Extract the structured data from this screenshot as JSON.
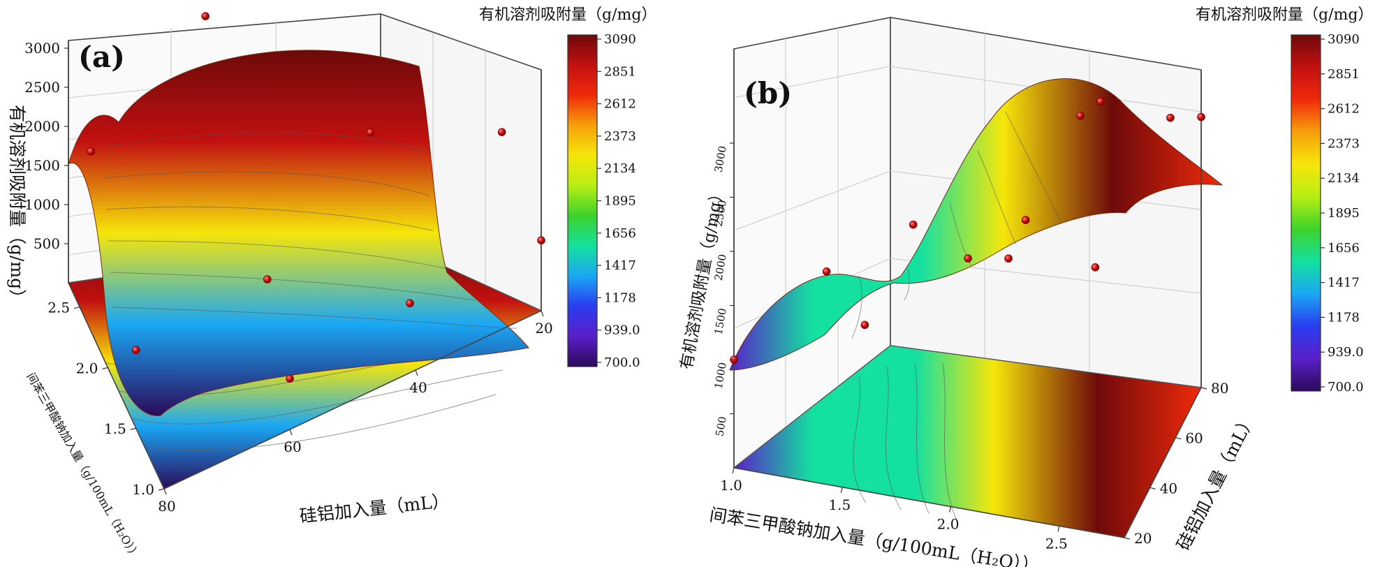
{
  "colors": {
    "colormap": [
      "#2b0a5a",
      "#5a1fc8",
      "#2a3cf0",
      "#1aa7f4",
      "#14e0a0",
      "#3cd22c",
      "#b6ee14",
      "#f6e60a",
      "#f6a00a",
      "#f02a0a",
      "#c21010",
      "#6e0a0a"
    ],
    "point": "#d01010",
    "contour": "#555555"
  },
  "colorbar": {
    "title": "有机溶剂吸附量（g/mg）",
    "ticks": [
      "3090",
      "2851",
      "2612",
      "2373",
      "2134",
      "1895",
      "1656",
      "1417",
      "1178",
      "939.0",
      "700.0"
    ]
  },
  "chart_data": [
    {
      "panel": "(a)",
      "type": "surface3d",
      "title": "",
      "xlabel": "硅铝加入量（mL）",
      "ylabel": "间苯三甲酸钠加入量（g/100mL（H₂O））",
      "zlabel": "有机溶剂吸附量（g/mg）",
      "x_ticks": [
        "20",
        "40",
        "60",
        "80"
      ],
      "y_ticks": [
        "1.0",
        "1.5",
        "2.0",
        "2.5"
      ],
      "z_ticks": [
        "500",
        "1000",
        "1500",
        "2000",
        "2500",
        "3000"
      ],
      "xlim": [
        20,
        80
      ],
      "ylim": [
        1.0,
        2.7
      ],
      "zlim": [
        0,
        3100
      ],
      "color_range": [
        700,
        3090
      ],
      "surface_profile_along_y": [
        {
          "y": 1.0,
          "z": 800
        },
        {
          "y": 1.5,
          "z": 1300
        },
        {
          "y": 2.0,
          "z": 2200
        },
        {
          "y": 2.5,
          "z": 2950
        },
        {
          "y": 2.7,
          "z": 3000
        }
      ],
      "points": [
        {
          "x": 60,
          "y": 2.5,
          "z": 2960
        },
        {
          "x": 40,
          "y": 2.5,
          "z": 2980
        },
        {
          "x": 20,
          "y": 2.5,
          "z": 2900
        },
        {
          "x": 80,
          "y": 2.3,
          "z": 2300
        },
        {
          "x": 40,
          "y": 1.8,
          "z": 1800
        },
        {
          "x": 60,
          "y": 1.4,
          "z": 1300
        },
        {
          "x": 20,
          "y": 1.7,
          "z": 1200
        },
        {
          "x": 80,
          "y": 1.5,
          "z": 1000
        },
        {
          "x": 40,
          "y": 1.1,
          "z": 700
        },
        {
          "x": 20,
          "y": 1.0,
          "z": 900
        },
        {
          "x": 60,
          "y": 1.0,
          "z": 650
        }
      ]
    },
    {
      "panel": "(b)",
      "type": "surface3d",
      "title": "",
      "xlabel": "间苯三甲酸钠加入量（g/100mL（H₂O））",
      "ylabel": "硅铝加入量（mL）",
      "zlabel": "有机溶剂吸附量（g/mg）",
      "x_ticks": [
        "1.0",
        "1.5",
        "2.0",
        "2.5"
      ],
      "y_ticks": [
        "20",
        "40",
        "60",
        "80"
      ],
      "z_ticks": [
        "500",
        "1000",
        "1500",
        "2000",
        "2500",
        "3000"
      ],
      "xlim": [
        1.0,
        2.8
      ],
      "ylim": [
        20,
        80
      ],
      "zlim": [
        0,
        3100
      ],
      "color_range": [
        700,
        3090
      ],
      "surface_profile_along_x": [
        {
          "x": 1.0,
          "z": 1000
        },
        {
          "x": 1.3,
          "z": 1500
        },
        {
          "x": 1.7,
          "z": 1600
        },
        {
          "x": 2.0,
          "z": 2200
        },
        {
          "x": 2.4,
          "z": 3000
        },
        {
          "x": 2.8,
          "z": 2700
        }
      ],
      "points": [
        {
          "x": 1.0,
          "y": 20,
          "z": 1000
        },
        {
          "x": 1.2,
          "y": 40,
          "z": 1500
        },
        {
          "x": 1.4,
          "y": 60,
          "z": 1600
        },
        {
          "x": 1.5,
          "y": 30,
          "z": 1300
        },
        {
          "x": 1.8,
          "y": 50,
          "z": 1600
        },
        {
          "x": 2.0,
          "y": 60,
          "z": 1800
        },
        {
          "x": 2.1,
          "y": 40,
          "z": 1900
        },
        {
          "x": 2.2,
          "y": 70,
          "z": 2600
        },
        {
          "x": 2.4,
          "y": 60,
          "z": 3000
        },
        {
          "x": 2.6,
          "y": 30,
          "z": 2200
        },
        {
          "x": 2.7,
          "y": 70,
          "z": 2700
        },
        {
          "x": 2.8,
          "y": 80,
          "z": 2500
        }
      ]
    }
  ]
}
